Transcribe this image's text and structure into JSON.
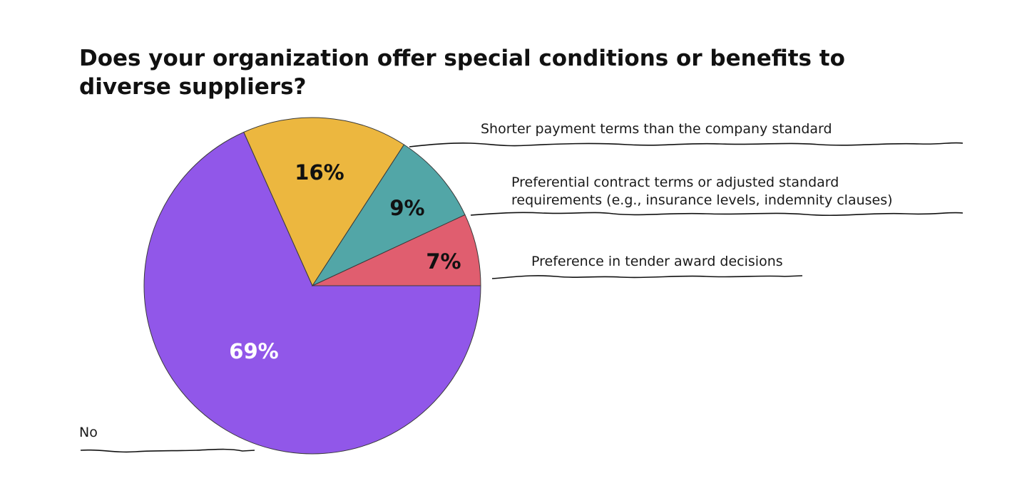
{
  "chart_data": {
    "type": "pie",
    "title": "Does your organization offer special conditions or benefits to diverse suppliers?",
    "slices": [
      {
        "label": "No",
        "value": 69,
        "value_label": "69%",
        "color": "#9157E9",
        "value_label_color": "#ffffff"
      },
      {
        "label": "Shorter payment terms than the company standard",
        "value": 16,
        "value_label": "16%",
        "color": "#ECB73F",
        "value_label_color": "#111111"
      },
      {
        "label": "Preferential contract terms or adjusted standard requirements (e.g., insurance levels, indemnity clauses)",
        "value": 9,
        "value_label": "9%",
        "color": "#52A6A7",
        "value_label_color": "#111111"
      },
      {
        "label": "Preference in tender award decisions",
        "value": 7,
        "value_label": "7%",
        "color": "#E05E6F",
        "value_label_color": "#111111"
      }
    ],
    "label_lines": [
      "Preferential contract terms or adjusted standard",
      "requirements (e.g., insurance levels, indemnity clauses)"
    ],
    "legend": "none",
    "grid": false
  }
}
